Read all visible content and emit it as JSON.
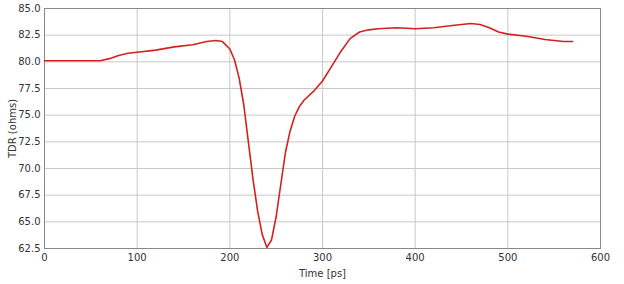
{
  "chart_data": {
    "type": "line",
    "x_label": "Time [ps]",
    "y_label": "TDR (ohms)",
    "x": [
      0,
      20,
      40,
      60,
      70,
      80,
      90,
      100,
      120,
      140,
      160,
      175,
      185,
      192,
      200,
      205,
      210,
      215,
      220,
      225,
      230,
      235,
      240,
      245,
      250,
      255,
      260,
      265,
      270,
      275,
      280,
      290,
      300,
      310,
      320,
      330,
      340,
      350,
      360,
      380,
      400,
      420,
      440,
      460,
      470,
      480,
      490,
      500,
      520,
      540,
      560,
      570
    ],
    "values": [
      80.1,
      80.1,
      80.1,
      80.1,
      80.3,
      80.6,
      80.8,
      80.9,
      81.1,
      81.4,
      81.6,
      81.9,
      82.0,
      81.9,
      81.2,
      80.2,
      78.5,
      76.0,
      72.5,
      69.0,
      66.0,
      63.8,
      62.6,
      63.3,
      65.5,
      68.5,
      71.5,
      73.5,
      74.9,
      75.8,
      76.4,
      77.2,
      78.2,
      79.6,
      81.0,
      82.2,
      82.8,
      83.0,
      83.1,
      83.2,
      83.1,
      83.2,
      83.4,
      83.6,
      83.5,
      83.2,
      82.8,
      82.6,
      82.4,
      82.1,
      81.9,
      81.9
    ],
    "color": "#d42020",
    "xlim": [
      0,
      600
    ],
    "xticks": [
      0,
      100,
      200,
      300,
      400,
      500,
      600
    ],
    "ylim": [
      62.5,
      85
    ],
    "yticks": [
      62.5,
      {
        "value": 65,
        "label": "65.0"
      },
      67.5,
      {
        "value": 70,
        "label": "70.0"
      },
      72.5,
      {
        "value": 75,
        "label": "75.0"
      },
      77.5,
      {
        "value": 80,
        "label": "80.0"
      },
      82.5,
      {
        "value": 85,
        "label": "85.0"
      }
    ],
    "grid": true
  }
}
